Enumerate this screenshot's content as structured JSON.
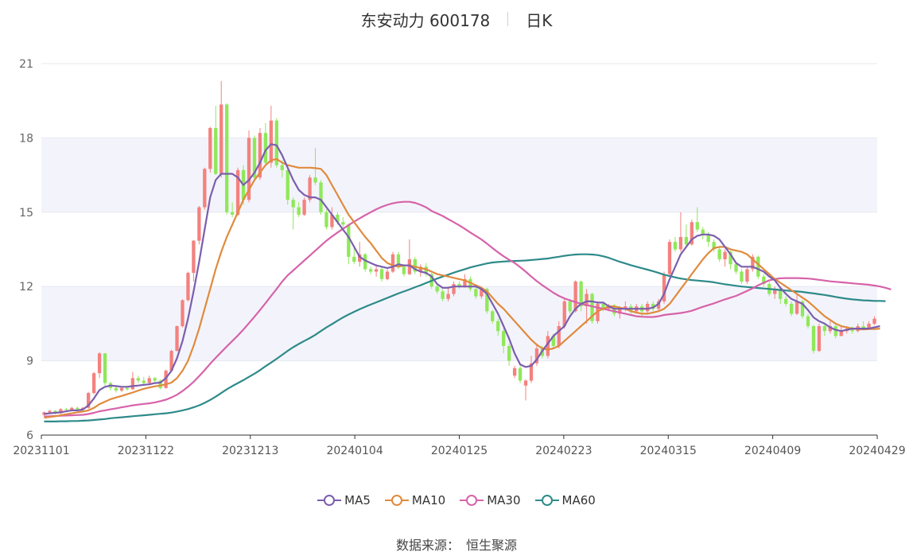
{
  "header": {
    "stock_name": "东安动力",
    "stock_code": "600178",
    "period": "日K"
  },
  "source": {
    "label": "数据来源：",
    "value": "恒生聚源"
  },
  "colors": {
    "up": "#f4817e",
    "down": "#8fe85a",
    "MA5": "#7b5ead",
    "MA10": "#e08a3d",
    "MA30": "#d663a9",
    "MA60": "#2f8a8a",
    "band": "#f3f4fb",
    "grid": "#e6e8f2"
  },
  "chart_data": {
    "type": "candlestick",
    "ylim": [
      6,
      21
    ],
    "yticks": [
      6,
      9,
      12,
      15,
      18,
      21
    ],
    "xticks": [
      "20231101",
      "20231122",
      "20231213",
      "20240104",
      "20240125",
      "20240223",
      "20240315",
      "20240409",
      "20240429"
    ],
    "legend": [
      "MA5",
      "MA10",
      "MA30",
      "MA60"
    ],
    "legend_position": "bottom",
    "candles": [
      [
        6.82,
        6.92,
        6.95,
        6.75
      ],
      [
        6.92,
        6.98,
        7.02,
        6.86
      ],
      [
        6.98,
        6.88,
        7.01,
        6.84
      ],
      [
        6.88,
        7.05,
        7.08,
        6.85
      ],
      [
        7.05,
        7.02,
        7.1,
        6.96
      ],
      [
        7.02,
        7.1,
        7.14,
        6.98
      ],
      [
        7.1,
        7.05,
        7.16,
        7.0
      ],
      [
        7.05,
        7.1,
        7.14,
        7.0
      ],
      [
        7.1,
        7.7,
        7.75,
        7.06
      ],
      [
        7.7,
        8.5,
        8.55,
        7.65
      ],
      [
        8.5,
        9.3,
        9.35,
        8.3
      ],
      [
        9.3,
        8.1,
        9.32,
        8.0
      ],
      [
        8.1,
        7.9,
        8.15,
        7.8
      ],
      [
        7.9,
        7.8,
        7.95,
        7.72
      ],
      [
        7.8,
        7.9,
        7.96,
        7.74
      ],
      [
        7.9,
        7.85,
        8.0,
        7.8
      ],
      [
        7.85,
        8.3,
        8.55,
        7.82
      ],
      [
        8.3,
        8.2,
        8.4,
        8.1
      ],
      [
        8.2,
        8.1,
        8.35,
        8.0
      ],
      [
        8.1,
        8.3,
        8.4,
        8.05
      ],
      [
        8.3,
        8.2,
        8.35,
        8.1
      ],
      [
        8.2,
        7.9,
        8.25,
        7.85
      ],
      [
        7.9,
        8.6,
        8.65,
        7.88
      ],
      [
        8.6,
        9.4,
        9.45,
        8.55
      ],
      [
        9.4,
        10.4,
        10.42,
        9.38
      ],
      [
        10.4,
        11.45,
        11.48,
        10.35
      ],
      [
        11.45,
        12.55,
        12.6,
        11.4
      ],
      [
        12.55,
        13.85,
        13.88,
        12.2
      ],
      [
        13.85,
        15.2,
        15.25,
        13.7
      ],
      [
        15.2,
        16.75,
        16.8,
        15.1
      ],
      [
        16.75,
        18.4,
        18.45,
        16.6
      ],
      [
        18.4,
        16.55,
        19.3,
        16.5
      ],
      [
        16.55,
        19.35,
        20.3,
        16.4
      ],
      [
        19.35,
        15.0,
        19.4,
        14.9
      ],
      [
        15.0,
        14.9,
        15.4,
        14.8
      ],
      [
        14.9,
        16.7,
        16.8,
        14.85
      ],
      [
        16.7,
        15.5,
        16.9,
        15.3
      ],
      [
        15.5,
        18.0,
        18.3,
        15.4
      ],
      [
        18.0,
        16.4,
        18.1,
        16.3
      ],
      [
        16.4,
        18.2,
        18.4,
        16.3
      ],
      [
        18.2,
        17.0,
        18.6,
        16.9
      ],
      [
        17.0,
        18.7,
        19.3,
        16.8
      ],
      [
        18.7,
        16.9,
        18.8,
        16.8
      ],
      [
        16.9,
        16.7,
        17.1,
        16.4
      ],
      [
        16.7,
        15.5,
        16.8,
        15.3
      ],
      [
        15.5,
        15.2,
        15.6,
        14.3
      ],
      [
        15.2,
        14.9,
        15.4,
        14.8
      ],
      [
        14.9,
        15.5,
        15.6,
        14.85
      ],
      [
        15.5,
        16.4,
        16.5,
        15.4
      ],
      [
        16.4,
        16.2,
        17.6,
        16.1
      ],
      [
        16.2,
        15.0,
        16.3,
        14.9
      ],
      [
        15.0,
        14.4,
        15.1,
        14.3
      ],
      [
        14.4,
        14.9,
        15.2,
        14.3
      ],
      [
        14.9,
        14.6,
        15.0,
        14.5
      ],
      [
        14.6,
        14.5,
        14.8,
        14.4
      ],
      [
        14.5,
        13.2,
        14.55,
        12.9
      ],
      [
        13.2,
        13.0,
        13.6,
        12.9
      ],
      [
        13.0,
        13.3,
        13.8,
        12.8
      ],
      [
        13.3,
        12.7,
        13.35,
        12.6
      ],
      [
        12.7,
        12.6,
        12.8,
        12.5
      ],
      [
        12.6,
        12.7,
        12.9,
        12.4
      ],
      [
        12.7,
        12.3,
        12.8,
        12.2
      ],
      [
        12.3,
        12.6,
        12.7,
        12.25
      ],
      [
        12.6,
        13.3,
        13.4,
        12.55
      ],
      [
        13.3,
        12.8,
        13.4,
        12.7
      ],
      [
        12.8,
        12.5,
        12.9,
        12.4
      ],
      [
        12.5,
        13.1,
        13.9,
        12.45
      ],
      [
        13.1,
        12.6,
        13.2,
        12.5
      ],
      [
        12.6,
        12.8,
        12.9,
        12.4
      ],
      [
        12.8,
        12.5,
        12.95,
        12.4
      ],
      [
        12.5,
        12.0,
        12.55,
        11.9
      ],
      [
        12.0,
        11.8,
        12.1,
        11.7
      ],
      [
        11.8,
        11.5,
        11.9,
        11.4
      ],
      [
        11.5,
        11.7,
        12.0,
        11.4
      ],
      [
        11.7,
        12.1,
        12.2,
        11.6
      ],
      [
        12.1,
        12.0,
        12.2,
        11.9
      ],
      [
        12.0,
        12.3,
        12.5,
        11.95
      ],
      [
        12.3,
        11.9,
        12.4,
        11.8
      ],
      [
        11.9,
        11.6,
        12.0,
        11.5
      ],
      [
        11.6,
        11.9,
        12.0,
        11.5
      ],
      [
        11.9,
        11.0,
        11.95,
        10.9
      ],
      [
        11.0,
        10.6,
        11.05,
        10.5
      ],
      [
        10.6,
        10.2,
        10.7,
        10.0
      ],
      [
        10.2,
        9.6,
        10.3,
        9.3
      ],
      [
        9.6,
        9.0,
        9.7,
        8.8
      ],
      [
        8.4,
        8.7,
        8.8,
        8.3
      ],
      [
        8.7,
        8.2,
        8.8,
        8.1
      ],
      [
        8.0,
        8.2,
        8.25,
        7.4
      ],
      [
        8.2,
        8.9,
        9.2,
        8.1
      ],
      [
        8.9,
        9.5,
        9.7,
        8.8
      ],
      [
        9.5,
        9.2,
        9.6,
        9.1
      ],
      [
        9.2,
        10.0,
        10.2,
        9.1
      ],
      [
        10.0,
        9.6,
        10.1,
        9.5
      ],
      [
        9.6,
        10.4,
        10.6,
        9.5
      ],
      [
        10.4,
        11.4,
        11.5,
        10.3
      ],
      [
        11.4,
        11.0,
        11.5,
        10.9
      ],
      [
        11.0,
        12.2,
        12.25,
        10.95
      ],
      [
        12.2,
        11.2,
        12.25,
        11.0
      ],
      [
        11.2,
        11.7,
        11.9,
        10.5
      ],
      [
        11.7,
        10.6,
        11.75,
        10.5
      ],
      [
        10.6,
        11.3,
        11.4,
        10.5
      ],
      [
        11.3,
        11.1,
        11.4,
        11.0
      ],
      [
        11.1,
        11.2,
        11.3,
        11.0
      ],
      [
        11.2,
        10.9,
        11.3,
        10.8
      ],
      [
        10.9,
        11.1,
        11.2,
        10.7
      ],
      [
        11.1,
        11.2,
        11.4,
        11.0
      ],
      [
        11.2,
        11.0,
        11.3,
        10.9
      ],
      [
        11.0,
        11.2,
        11.3,
        10.9
      ],
      [
        11.2,
        11.0,
        11.3,
        10.8
      ],
      [
        11.0,
        11.3,
        11.4,
        10.9
      ],
      [
        11.3,
        11.1,
        11.4,
        11.0
      ],
      [
        11.1,
        11.4,
        11.5,
        11.0
      ],
      [
        11.4,
        12.5,
        12.6,
        11.3
      ],
      [
        12.5,
        13.8,
        13.9,
        12.4
      ],
      [
        13.8,
        13.5,
        14.0,
        13.4
      ],
      [
        13.5,
        14.0,
        15.0,
        13.4
      ],
      [
        14.0,
        13.7,
        14.5,
        13.6
      ],
      [
        13.7,
        14.6,
        14.7,
        13.65
      ],
      [
        14.6,
        14.3,
        15.2,
        14.2
      ],
      [
        14.3,
        14.1,
        14.4,
        13.9
      ],
      [
        14.1,
        13.8,
        14.2,
        13.6
      ],
      [
        13.8,
        13.5,
        13.9,
        13.4
      ],
      [
        13.5,
        13.1,
        13.6,
        13.0
      ],
      [
        13.1,
        13.4,
        13.5,
        12.8
      ],
      [
        13.4,
        12.9,
        13.45,
        12.7
      ],
      [
        12.9,
        12.6,
        13.0,
        12.5
      ],
      [
        12.6,
        12.2,
        12.7,
        12.1
      ],
      [
        12.2,
        12.7,
        12.8,
        12.1
      ],
      [
        12.7,
        13.2,
        13.3,
        12.6
      ],
      [
        13.2,
        12.4,
        13.25,
        12.3
      ],
      [
        12.4,
        12.1,
        12.5,
        12.0
      ],
      [
        12.1,
        11.7,
        12.2,
        11.6
      ],
      [
        11.7,
        11.9,
        12.0,
        11.5
      ],
      [
        11.9,
        11.5,
        12.0,
        11.3
      ],
      [
        11.5,
        11.3,
        11.6,
        11.2
      ],
      [
        11.3,
        10.9,
        11.4,
        10.8
      ],
      [
        10.9,
        11.4,
        11.7,
        10.85
      ],
      [
        11.4,
        10.8,
        11.45,
        10.7
      ],
      [
        10.8,
        10.4,
        10.9,
        10.3
      ],
      [
        10.4,
        9.4,
        10.45,
        9.3
      ],
      [
        9.4,
        10.4,
        10.5,
        9.35
      ],
      [
        10.4,
        10.2,
        10.5,
        10.0
      ],
      [
        10.2,
        10.4,
        10.6,
        10.1
      ],
      [
        10.4,
        10.0,
        10.5,
        9.9
      ],
      [
        10.0,
        10.2,
        10.4,
        10.0
      ],
      [
        10.2,
        10.3,
        10.4,
        10.1
      ],
      [
        10.3,
        10.2,
        10.4,
        10.1
      ],
      [
        10.2,
        10.4,
        10.5,
        10.15
      ],
      [
        10.4,
        10.3,
        10.6,
        10.25
      ],
      [
        10.3,
        10.5,
        10.6,
        10.25
      ],
      [
        10.5,
        10.7,
        10.8,
        10.45
      ]
    ],
    "MA5": [
      6.85,
      6.88,
      6.9,
      6.92,
      6.96,
      7.0,
      7.0,
      7.03,
      7.2,
      7.48,
      7.82,
      7.95,
      8.0,
      7.98,
      7.95,
      7.95,
      7.98,
      8.0,
      8.03,
      8.05,
      8.1,
      8.12,
      8.3,
      8.6,
      9.1,
      9.8,
      10.7,
      11.8,
      13.0,
      14.3,
      15.6,
      16.3,
      16.55,
      16.55,
      16.55,
      16.4,
      16.1,
      16.3,
      16.6,
      17.0,
      17.5,
      17.75,
      17.7,
      17.3,
      16.8,
      16.3,
      15.9,
      15.7,
      15.6,
      15.6,
      15.5,
      15.2,
      14.9,
      14.6,
      14.3,
      14.0,
      13.6,
      13.2,
      13.05,
      12.95,
      12.85,
      12.8,
      12.75,
      12.8,
      12.9,
      12.85,
      12.85,
      12.7,
      12.6,
      12.55,
      12.4,
      12.1,
      11.95,
      11.95,
      12.0,
      12.0,
      12.0,
      12.0,
      12.0,
      11.9,
      11.7,
      11.3,
      10.9,
      10.4,
      9.9,
      9.3,
      8.85,
      8.75,
      8.8,
      9.05,
      9.4,
      9.7,
      10.0,
      10.2,
      10.4,
      10.8,
      11.1,
      11.3,
      11.4,
      11.4,
      11.35,
      11.35,
      11.2,
      11.1,
      11.1,
      11.1,
      11.1,
      11.1,
      11.1,
      11.1,
      11.15,
      11.3,
      11.7,
      12.3,
      12.8,
      13.3,
      13.6,
      13.9,
      14.05,
      14.1,
      14.1,
      14.05,
      13.9,
      13.6,
      13.3,
      12.95,
      12.8,
      12.8,
      12.8,
      12.7,
      12.6,
      12.4,
      12.25,
      11.95,
      11.7,
      11.5,
      11.4,
      11.3,
      11.05,
      10.75,
      10.6,
      10.5,
      10.35,
      10.25,
      10.2,
      10.25,
      10.3,
      10.3,
      10.3,
      10.3,
      10.35,
      10.4
    ],
    "MA10": [
      6.7,
      6.73,
      6.76,
      6.8,
      6.84,
      6.88,
      6.92,
      6.95,
      7.0,
      7.1,
      7.25,
      7.35,
      7.45,
      7.52,
      7.58,
      7.65,
      7.72,
      7.8,
      7.87,
      7.92,
      7.97,
      8.0,
      8.05,
      8.12,
      8.3,
      8.6,
      9.0,
      9.6,
      10.3,
      11.1,
      11.9,
      12.7,
      13.4,
      14.0,
      14.5,
      15.0,
      15.5,
      15.9,
      16.3,
      16.6,
      16.9,
      17.1,
      17.15,
      17.0,
      16.9,
      16.85,
      16.8,
      16.8,
      16.8,
      16.78,
      16.75,
      16.5,
      16.1,
      15.7,
      15.3,
      14.9,
      14.6,
      14.3,
      14.0,
      13.75,
      13.45,
      13.15,
      12.95,
      12.85,
      12.8,
      12.85,
      12.85,
      12.8,
      12.75,
      12.7,
      12.6,
      12.5,
      12.45,
      12.4,
      12.35,
      12.3,
      12.25,
      12.15,
      12.05,
      11.95,
      11.8,
      11.55,
      11.3,
      11.1,
      10.85,
      10.6,
      10.35,
      10.1,
      9.85,
      9.65,
      9.5,
      9.45,
      9.5,
      9.6,
      9.8,
      10.0,
      10.2,
      10.4,
      10.6,
      10.8,
      11.0,
      11.1,
      11.2,
      11.2,
      11.15,
      11.1,
      11.0,
      10.95,
      10.9,
      10.9,
      10.95,
      11.0,
      11.1,
      11.3,
      11.6,
      11.9,
      12.2,
      12.5,
      12.8,
      13.1,
      13.35,
      13.55,
      13.6,
      13.6,
      13.5,
      13.45,
      13.4,
      13.3,
      13.1,
      12.9,
      12.7,
      12.5,
      12.3,
      12.15,
      12.0,
      11.85,
      11.7,
      11.55,
      11.4,
      11.2,
      11.0,
      10.8,
      10.65,
      10.5,
      10.4,
      10.35,
      10.3,
      10.28,
      10.27,
      10.28,
      10.28,
      10.3
    ],
    "MA30": [
      6.75,
      6.76,
      6.77,
      6.78,
      6.79,
      6.8,
      6.81,
      6.82,
      6.85,
      6.9,
      6.96,
      7.0,
      7.04,
      7.08,
      7.12,
      7.16,
      7.2,
      7.23,
      7.26,
      7.28,
      7.32,
      7.37,
      7.43,
      7.52,
      7.63,
      7.78,
      7.95,
      8.15,
      8.38,
      8.62,
      8.88,
      9.12,
      9.35,
      9.58,
      9.8,
      10.02,
      10.26,
      10.52,
      10.78,
      11.05,
      11.33,
      11.62,
      11.9,
      12.2,
      12.45,
      12.65,
      12.85,
      13.05,
      13.25,
      13.45,
      13.65,
      13.85,
      14.02,
      14.18,
      14.33,
      14.48,
      14.62,
      14.75,
      14.88,
      15.0,
      15.12,
      15.22,
      15.3,
      15.36,
      15.4,
      15.42,
      15.42,
      15.38,
      15.3,
      15.2,
      15.05,
      14.95,
      14.85,
      14.72,
      14.6,
      14.47,
      14.33,
      14.18,
      14.04,
      13.9,
      13.73,
      13.55,
      13.38,
      13.22,
      13.08,
      12.95,
      12.78,
      12.6,
      12.4,
      12.22,
      12.05,
      11.9,
      11.75,
      11.62,
      11.52,
      11.44,
      11.37,
      11.3,
      11.25,
      11.2,
      11.15,
      11.1,
      11.05,
      11.0,
      10.95,
      10.9,
      10.85,
      10.8,
      10.78,
      10.77,
      10.77,
      10.8,
      10.85,
      10.88,
      10.9,
      10.93,
      10.97,
      11.02,
      11.1,
      11.18,
      11.25,
      11.32,
      11.4,
      11.48,
      11.55,
      11.62,
      11.72,
      11.82,
      11.93,
      12.05,
      12.15,
      12.25,
      12.3,
      12.33,
      12.34,
      12.34,
      12.34,
      12.33,
      12.32,
      12.3,
      12.27,
      12.24,
      12.21,
      12.19,
      12.17,
      12.15,
      12.13,
      12.11,
      12.09,
      12.07,
      12.04,
      12.0,
      11.95,
      11.88
    ],
    "MA60": [
      6.55,
      6.55,
      6.55,
      6.56,
      6.56,
      6.57,
      6.57,
      6.58,
      6.59,
      6.61,
      6.63,
      6.65,
      6.68,
      6.7,
      6.72,
      6.74,
      6.76,
      6.78,
      6.8,
      6.82,
      6.84,
      6.86,
      6.88,
      6.91,
      6.95,
      7.0,
      7.05,
      7.12,
      7.2,
      7.3,
      7.42,
      7.55,
      7.7,
      7.85,
      7.98,
      8.1,
      8.22,
      8.35,
      8.48,
      8.62,
      8.78,
      8.93,
      9.08,
      9.24,
      9.4,
      9.55,
      9.68,
      9.8,
      9.92,
      10.05,
      10.2,
      10.35,
      10.48,
      10.62,
      10.75,
      10.87,
      10.98,
      11.08,
      11.18,
      11.27,
      11.36,
      11.45,
      11.54,
      11.63,
      11.72,
      11.8,
      11.88,
      11.97,
      12.05,
      12.14,
      12.23,
      12.32,
      12.4,
      12.48,
      12.56,
      12.63,
      12.7,
      12.77,
      12.83,
      12.88,
      12.93,
      12.97,
      12.99,
      13.01,
      13.02,
      13.03,
      13.04,
      13.05,
      13.07,
      13.09,
      13.11,
      13.13,
      13.17,
      13.2,
      13.24,
      13.27,
      13.29,
      13.3,
      13.3,
      13.29,
      13.27,
      13.22,
      13.16,
      13.08,
      13.0,
      12.93,
      12.86,
      12.8,
      12.74,
      12.68,
      12.62,
      12.55,
      12.48,
      12.42,
      12.37,
      12.32,
      12.29,
      12.26,
      12.24,
      12.22,
      12.2,
      12.17,
      12.13,
      12.09,
      12.06,
      12.03,
      12.0,
      11.98,
      11.96,
      11.94,
      11.92,
      11.9,
      11.88,
      11.86,
      11.84,
      11.82,
      11.8,
      11.78,
      11.75,
      11.72,
      11.69,
      11.66,
      11.62,
      11.58,
      11.54,
      11.51,
      11.48,
      11.46,
      11.44,
      11.43,
      11.42,
      11.42,
      11.41
    ]
  }
}
